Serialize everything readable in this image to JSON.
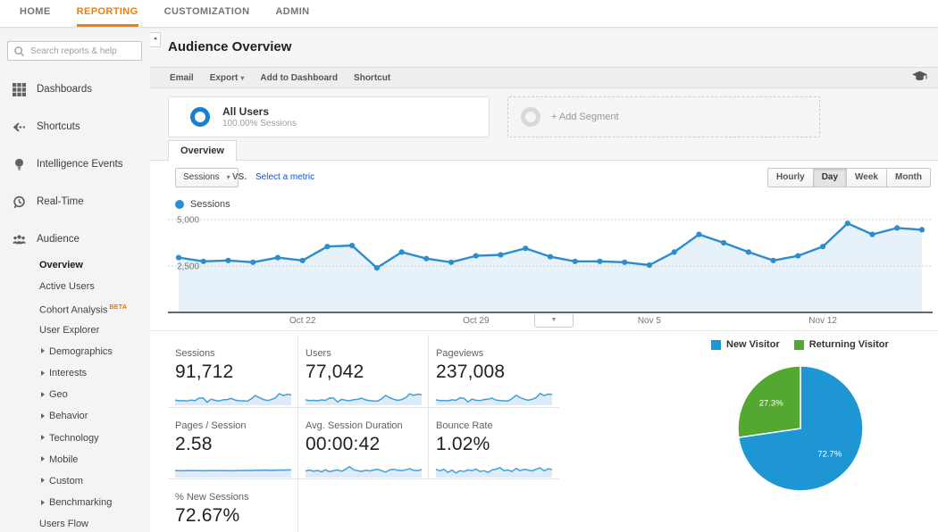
{
  "topnav": {
    "items": [
      {
        "label": "HOME",
        "active": false
      },
      {
        "label": "REPORTING",
        "active": true
      },
      {
        "label": "CUSTOMIZATION",
        "active": false
      },
      {
        "label": "ADMIN",
        "active": false
      }
    ]
  },
  "sidebar": {
    "search_placeholder": "Search reports & help",
    "items": [
      {
        "label": "Dashboards",
        "icon": "dashboards-grid-icon"
      },
      {
        "label": "Shortcuts",
        "icon": "shortcuts-arrow-icon"
      },
      {
        "label": "Intelligence Events",
        "icon": "intelligence-events-icon"
      },
      {
        "label": "Real-Time",
        "icon": "real-time-icon"
      },
      {
        "label": "Audience",
        "icon": "audience-people-icon",
        "active": true
      }
    ],
    "audience_subitems": [
      {
        "label": "Overview",
        "active": true
      },
      {
        "label": "Active Users"
      },
      {
        "label": "Cohort Analysis",
        "badge": "BETA"
      },
      {
        "label": "User Explorer"
      },
      {
        "label": "Demographics",
        "expandable": true
      },
      {
        "label": "Interests",
        "expandable": true
      },
      {
        "label": "Geo",
        "expandable": true
      },
      {
        "label": "Behavior",
        "expandable": true
      },
      {
        "label": "Technology",
        "expandable": true
      },
      {
        "label": "Mobile",
        "expandable": true
      },
      {
        "label": "Custom",
        "expandable": true
      },
      {
        "label": "Benchmarking",
        "expandable": true
      },
      {
        "label": "Users Flow"
      }
    ]
  },
  "header": {
    "title": "Audience Overview"
  },
  "toolbar": {
    "items": [
      {
        "label": "Email",
        "dropdown": false
      },
      {
        "label": "Export",
        "dropdown": true
      },
      {
        "label": "Add to Dashboard",
        "dropdown": false
      },
      {
        "label": "Shortcut",
        "dropdown": false
      }
    ]
  },
  "segments": {
    "all_users": {
      "title": "All Users",
      "subtitle": "100.00% Sessions"
    },
    "add_segment_label": "+ Add Segment"
  },
  "report": {
    "tab_label": "Overview",
    "metric_dropdown": "Sessions",
    "vs_label": "VS.",
    "select_metric_link": "Select a metric",
    "granularity": {
      "options": [
        "Hourly",
        "Day",
        "Week",
        "Month"
      ],
      "active": "Day"
    },
    "chart_legend": "Sessions"
  },
  "chart_data": [
    {
      "type": "area",
      "title": "Sessions over time (daily)",
      "series": [
        {
          "name": "Sessions",
          "values": [
            2950,
            2750,
            2800,
            2700,
            2950,
            2800,
            3550,
            3600,
            2400,
            3250,
            2900,
            2700,
            3050,
            3100,
            3450,
            3000,
            2750,
            2750,
            2700,
            2550,
            3250,
            4200,
            3750,
            3250,
            2800,
            3050,
            3550,
            4800,
            4200,
            4550,
            4450
          ]
        }
      ],
      "x_tick_labels": [
        {
          "index": 5,
          "label": "Oct 22"
        },
        {
          "index": 12,
          "label": "Oct 29"
        },
        {
          "index": 19,
          "label": "Nov 5"
        },
        {
          "index": 26,
          "label": "Nov 12"
        }
      ],
      "ylim": [
        0,
        5000
      ],
      "y_ticks": [
        2500,
        5000
      ],
      "grid": "dashed-horizontal",
      "line_color": "#2b8cce",
      "fill_color": "#e7f1f9"
    },
    {
      "type": "pie",
      "title": "New vs Returning visitors",
      "labels": [
        "New Visitor",
        "Returning Visitor"
      ],
      "values": [
        72.7,
        27.3
      ],
      "value_labels": [
        "72.7%",
        "27.3%"
      ],
      "colors": [
        "#1e96d4",
        "#54a832"
      ],
      "legend_position": "top"
    }
  ],
  "scorecards": [
    {
      "label": "Sessions",
      "value": "91,712",
      "spark": [
        0.3,
        0.25,
        0.27,
        0.24,
        0.3,
        0.27,
        0.44,
        0.45,
        0.15,
        0.36,
        0.28,
        0.24,
        0.32,
        0.34,
        0.42,
        0.3,
        0.25,
        0.25,
        0.22,
        0.38,
        0.62,
        0.48,
        0.35,
        0.27,
        0.33,
        0.45,
        0.75,
        0.62,
        0.7,
        0.67
      ]
    },
    {
      "label": "Users",
      "value": "77,042",
      "spark": [
        0.32,
        0.26,
        0.28,
        0.25,
        0.31,
        0.28,
        0.45,
        0.44,
        0.16,
        0.35,
        0.29,
        0.25,
        0.33,
        0.35,
        0.43,
        0.31,
        0.26,
        0.24,
        0.23,
        0.39,
        0.63,
        0.47,
        0.36,
        0.28,
        0.34,
        0.46,
        0.74,
        0.63,
        0.71,
        0.68
      ]
    },
    {
      "label": "Pageviews",
      "value": "237,008",
      "spark": [
        0.31,
        0.26,
        0.27,
        0.25,
        0.32,
        0.28,
        0.46,
        0.43,
        0.17,
        0.37,
        0.28,
        0.26,
        0.34,
        0.36,
        0.44,
        0.3,
        0.26,
        0.25,
        0.24,
        0.4,
        0.64,
        0.48,
        0.37,
        0.29,
        0.35,
        0.47,
        0.76,
        0.61,
        0.72,
        0.69
      ]
    },
    {
      "label": "Pages / Session",
      "value": "2.58",
      "spark": [
        0.42,
        0.42,
        0.41,
        0.42,
        0.43,
        0.42,
        0.42,
        0.41,
        0.42,
        0.42,
        0.43,
        0.42,
        0.42,
        0.42,
        0.41,
        0.42,
        0.43,
        0.44,
        0.43,
        0.43,
        0.45,
        0.44,
        0.45,
        0.45,
        0.44,
        0.45,
        0.46,
        0.46,
        0.47,
        0.47
      ]
    },
    {
      "label": "Avg. Session Duration",
      "value": "00:00:42",
      "spark": [
        0.4,
        0.46,
        0.38,
        0.44,
        0.34,
        0.48,
        0.35,
        0.42,
        0.47,
        0.38,
        0.52,
        0.7,
        0.48,
        0.42,
        0.37,
        0.45,
        0.4,
        0.47,
        0.52,
        0.42,
        0.32,
        0.47,
        0.52,
        0.45,
        0.42,
        0.48,
        0.55,
        0.45,
        0.42,
        0.5
      ]
    },
    {
      "label": "Bounce Rate",
      "value": "1.02%",
      "spark": [
        0.52,
        0.4,
        0.52,
        0.3,
        0.46,
        0.26,
        0.42,
        0.36,
        0.47,
        0.42,
        0.54,
        0.36,
        0.42,
        0.3,
        0.47,
        0.52,
        0.63,
        0.42,
        0.47,
        0.36,
        0.58,
        0.42,
        0.52,
        0.47,
        0.4,
        0.52,
        0.62,
        0.4,
        0.55,
        0.5
      ]
    },
    {
      "label": "% New Sessions",
      "value": "72.67%",
      "spark": [
        0.45,
        0.45,
        0.44,
        0.47,
        0.62,
        0.5,
        0.45,
        0.45,
        0.44,
        0.45,
        0.45,
        0.45,
        0.46,
        0.45,
        0.44,
        0.45,
        0.45,
        0.46,
        0.45,
        0.45,
        0.44,
        0.45,
        0.45,
        0.46,
        0.45,
        0.45,
        0.44,
        0.45,
        0.45,
        0.45
      ]
    }
  ],
  "colors": {
    "accent_orange": "#f57c00",
    "link_blue": "#1155cc",
    "chart_blue": "#2b8cce",
    "chart_fill": "#e7f1f9",
    "spark_blue": "#45a0d8",
    "spark_fill": "#dcebf7",
    "pie_blue": "#1e96d4",
    "pie_green": "#54a832",
    "segment_donut_blue": "#1b7fd0"
  }
}
